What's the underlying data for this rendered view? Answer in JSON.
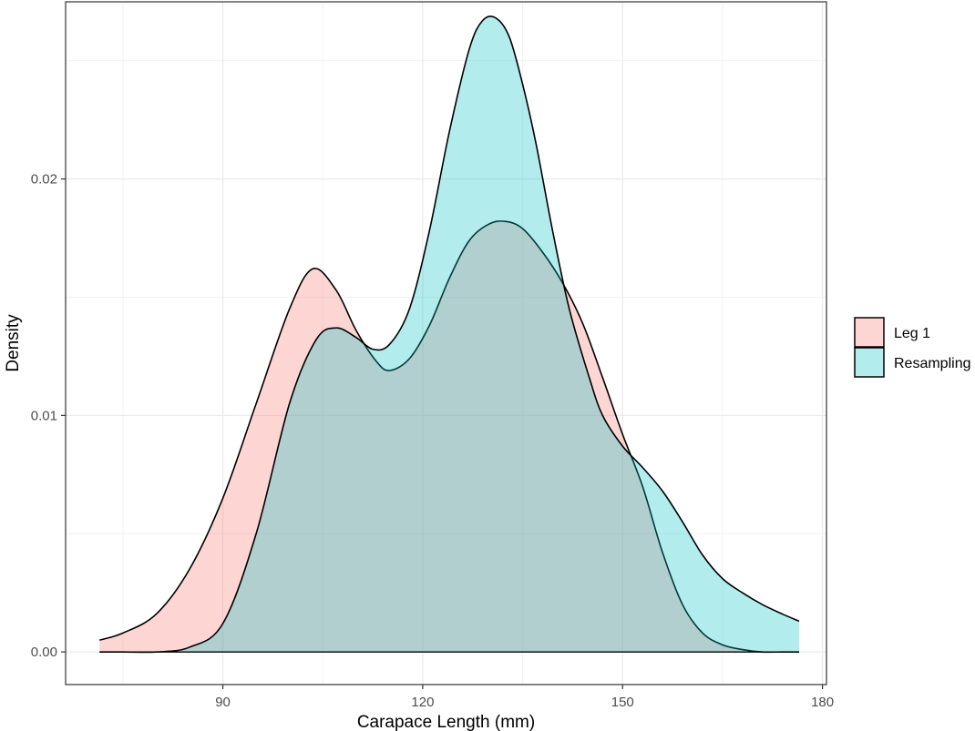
{
  "chart_data": {
    "type": "area",
    "xlabel": "Carapace Length (mm)",
    "ylabel": "Density",
    "xlim": [
      66.4,
      180.6
    ],
    "ylim": [
      -0.00138,
      0.02749
    ],
    "x_ticks": [
      90,
      120,
      150,
      180
    ],
    "x_tick_labels": [
      "90",
      "120",
      "150",
      "180"
    ],
    "y_ticks": [
      0.0,
      0.01,
      0.02
    ],
    "y_tick_labels": [
      "0.00",
      "0.01",
      "0.02"
    ],
    "grid": true,
    "legend_position": "right",
    "series": [
      {
        "name": "Leg 1",
        "color": "#F8766D",
        "x": [
          71.5,
          75,
          80,
          85,
          90,
          95,
          100,
          103.5,
          107,
          110,
          113,
          115,
          118,
          121,
          124,
          127,
          130,
          132.5,
          135,
          138,
          141,
          144,
          147,
          150,
          153,
          156,
          159,
          162,
          165,
          168,
          171,
          174,
          176.5
        ],
        "y": [
          0.0005,
          0.0008,
          0.0016,
          0.0035,
          0.0065,
          0.0105,
          0.0145,
          0.0162,
          0.0153,
          0.0136,
          0.0123,
          0.0119,
          0.0124,
          0.0138,
          0.0158,
          0.0174,
          0.0181,
          0.0182,
          0.0179,
          0.0169,
          0.0156,
          0.0139,
          0.0116,
          0.0092,
          0.007,
          0.0042,
          0.002,
          0.0008,
          0.0003,
          0.0001,
          0.0,
          0.0,
          0.0
        ]
      },
      {
        "name": "Resampling",
        "color": "#00BFC4",
        "x": [
          71.5,
          75,
          80,
          85,
          90,
          95,
          100,
          104,
          107,
          110,
          112.5,
          115,
          118,
          121,
          124,
          127,
          129,
          131,
          133,
          135,
          137,
          139.5,
          142,
          145,
          147,
          150,
          153,
          156,
          159,
          162,
          165,
          168,
          171,
          174,
          176.5
        ],
        "y": [
          0.0,
          0.0,
          0.0,
          0.0002,
          0.0012,
          0.005,
          0.0105,
          0.0132,
          0.0137,
          0.0133,
          0.0128,
          0.013,
          0.0145,
          0.0178,
          0.022,
          0.0255,
          0.0267,
          0.0268,
          0.026,
          0.024,
          0.0215,
          0.0178,
          0.0145,
          0.0116,
          0.01,
          0.0087,
          0.0078,
          0.0068,
          0.0055,
          0.0041,
          0.0031,
          0.0025,
          0.002,
          0.0016,
          0.0013
        ]
      }
    ]
  }
}
